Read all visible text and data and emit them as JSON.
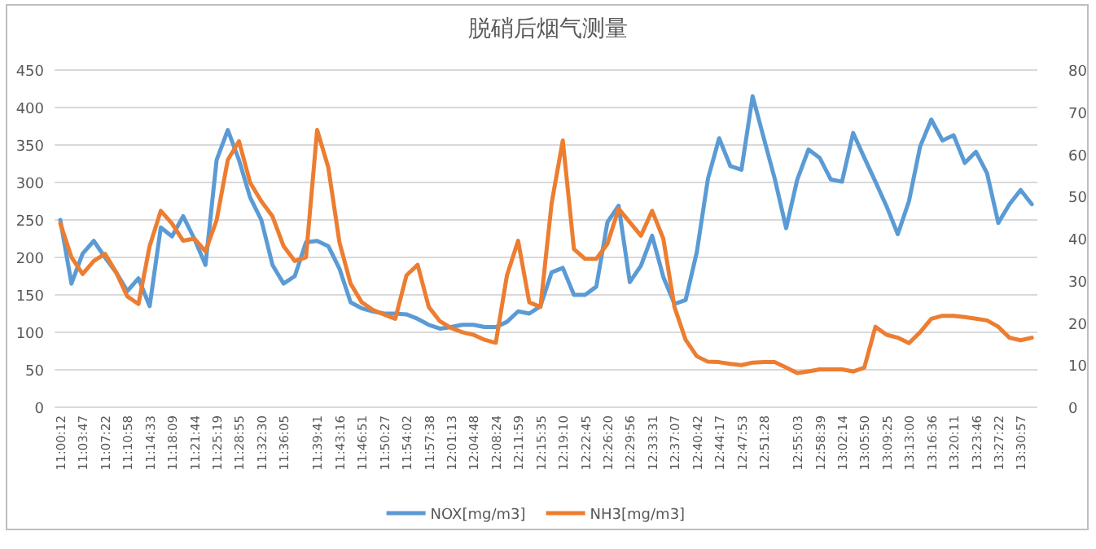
{
  "chart_data": {
    "type": "line",
    "title": "脱硝后烟气测量",
    "categories": [
      "11:00:12",
      null,
      "11:03:47",
      null,
      "11:07:22",
      null,
      "11:10:58",
      null,
      "11:14:33",
      null,
      "11:18:09",
      null,
      "11:21:44",
      null,
      "11:25:19",
      null,
      "11:28:55",
      null,
      "11:32:30",
      null,
      "11:36:05",
      null,
      null,
      "11:39:41",
      null,
      "11:43:16",
      null,
      "11:46:51",
      null,
      "11:50:27",
      null,
      "11:54:02",
      null,
      "11:57:38",
      null,
      "12:01:13",
      null,
      "12:04:48",
      null,
      "12:08:24",
      null,
      "12:11:59",
      null,
      "12:15:35",
      null,
      "12:19:10",
      null,
      "12:22:45",
      null,
      "12:26:20",
      null,
      "12:29:56",
      null,
      "12:33:31",
      null,
      "12:37:07",
      null,
      "12:40:42",
      null,
      "12:44:17",
      null,
      "12:47:53",
      null,
      "12:51:28",
      null,
      null,
      "12:55:03",
      null,
      "12:58:39",
      null,
      "13:02:14",
      null,
      "13:05:50",
      null,
      "13:09:25",
      null,
      "13:13:00",
      null,
      "13:16:36",
      null,
      "13:20:11",
      null,
      "13:23:46",
      null,
      "13:27:22",
      null,
      "13:30:57",
      null
    ],
    "series": [
      {
        "name": "NOX[mg/m3]",
        "color": "#5b9bd5",
        "values": [
          250,
          165,
          205,
          222,
          200,
          180,
          155,
          172,
          135,
          240,
          228,
          255,
          225,
          190,
          330,
          370,
          330,
          280,
          250,
          190,
          165,
          175,
          220,
          222,
          215,
          185,
          140,
          132,
          128,
          125,
          125,
          124,
          118,
          110,
          105,
          107,
          110,
          110,
          107,
          107,
          114,
          128,
          125,
          135,
          180,
          186,
          150,
          150,
          161,
          247,
          269,
          167,
          189,
          229,
          174,
          138,
          143,
          207,
          305,
          359,
          322,
          317,
          415,
          359,
          304,
          239,
          304,
          344,
          333,
          304,
          301,
          366,
          333,
          301,
          268,
          231,
          275,
          348,
          384,
          356,
          363,
          326,
          341,
          312,
          246,
          271,
          290,
          271
        ]
      },
      {
        "name": "NH3[mg/m3]",
        "color": "#ed7d31",
        "axis": "y2",
        "values": [
          43.6,
          35.6,
          31.6,
          34.7,
          36.4,
          32,
          26.3,
          24.5,
          38.2,
          46.6,
          43.6,
          39.5,
          40,
          37,
          44.4,
          58.7,
          63.1,
          53.3,
          48.9,
          45.3,
          38.2,
          34.7,
          35.6,
          65.8,
          56.9,
          39.1,
          29.3,
          24.9,
          23.1,
          22,
          21,
          31.3,
          33.8,
          23.8,
          20.4,
          18.8,
          17.8,
          17.2,
          16,
          15.3,
          31.3,
          39.5,
          24.9,
          23.8,
          48.4,
          63.3,
          37.5,
          35.2,
          35.2,
          38.8,
          47.1,
          43.9,
          40.7,
          46.6,
          40,
          23.8,
          16,
          12.1,
          10.8,
          10.7,
          10.3,
          10,
          10.6,
          10.7,
          10.7,
          9.4,
          8.1,
          8.5,
          9,
          9,
          9,
          8.5,
          9.4,
          19.1,
          17.2,
          16.5,
          15.2,
          17.8,
          21,
          21.7,
          21.7,
          21.4,
          21,
          20.6,
          19.1,
          16.5,
          15.9,
          16.5
        ]
      }
    ],
    "ylim": [
      0,
      450
    ],
    "yticks": [
      0,
      50,
      100,
      150,
      200,
      250,
      300,
      350,
      400,
      450
    ],
    "y2lim": [
      0,
      80
    ],
    "y2ticks": [
      0,
      10,
      20,
      30,
      40,
      50,
      60,
      70,
      80
    ],
    "grid": "y",
    "legend": "bottom"
  }
}
